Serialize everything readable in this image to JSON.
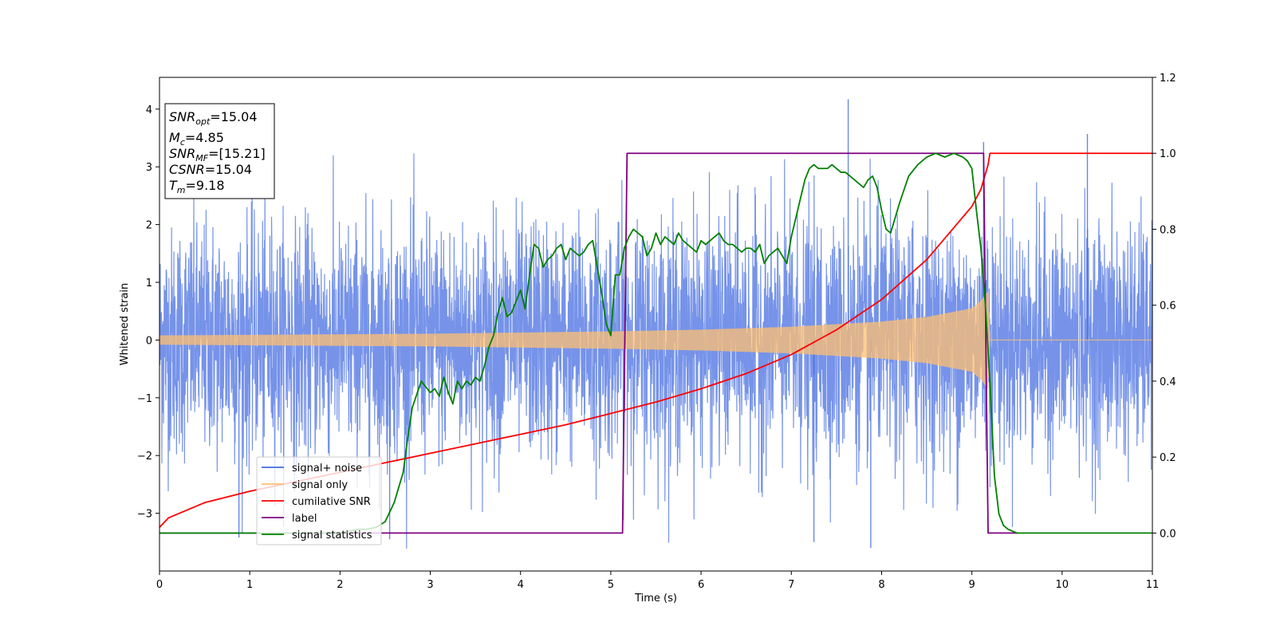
{
  "chart_data": {
    "type": "line",
    "xlabel": "Time (s)",
    "ylabel": "Whitened strain",
    "xlim": [
      0,
      11
    ],
    "ylim_left": [
      -4.0,
      4.55
    ],
    "ylim_right": [
      -0.1,
      1.2
    ],
    "x_ticks": [
      "0",
      "1",
      "2",
      "3",
      "4",
      "5",
      "6",
      "7",
      "8",
      "9",
      "10",
      "11"
    ],
    "y_ticks_left": [
      "−3",
      "−2",
      "−1",
      "0",
      "1",
      "2",
      "3",
      "4"
    ],
    "y_ticks_right": [
      "0.0",
      "0.2",
      "0.4",
      "0.6",
      "0.8",
      "1.0",
      "1.2"
    ],
    "grid": false,
    "legend_position": "lower-left",
    "annotation": {
      "lines": [
        {
          "base": "SNR",
          "sub": "opt",
          "value": "=15.04"
        },
        {
          "base": "M",
          "sub": "c",
          "value": "=4.85"
        },
        {
          "base": "SNR",
          "sub": "MF",
          "value": "=[15.21]"
        },
        {
          "base": "CSNR",
          "sub": "",
          "value": "=15.04"
        },
        {
          "base": "T",
          "sub": "m",
          "value": "=9.18"
        }
      ]
    },
    "series": [
      {
        "name": "signal+ noise",
        "axis": "left",
        "color": "#4169e1",
        "description_level": "noise amplitude ~1.5 with spikes up to 4.2",
        "noise_std": 1.0,
        "noise_peak_max": 4.17,
        "noise_peak_min": -3.6
      },
      {
        "name": "signal only",
        "axis": "left",
        "color": "#ffbf70",
        "envelope_x": [
          0,
          1,
          2,
          3,
          4,
          5,
          6,
          7,
          8,
          8.5,
          9,
          9.1,
          9.18,
          9.2,
          11
        ],
        "envelope_y": [
          0.08,
          0.09,
          0.1,
          0.11,
          0.13,
          0.15,
          0.18,
          0.23,
          0.32,
          0.4,
          0.55,
          0.68,
          0.85,
          0.0,
          0.0
        ]
      },
      {
        "name": "cumilative SNR",
        "axis": "right",
        "color": "#ff0000",
        "x": [
          0,
          0.1,
          0.5,
          1,
          1.5,
          2,
          2.5,
          3,
          3.5,
          4,
          4.5,
          5,
          5.5,
          6,
          6.5,
          7,
          7.5,
          8,
          8.5,
          9,
          9.1,
          9.18,
          9.2,
          11
        ],
        "y": [
          0.015,
          0.04,
          0.08,
          0.11,
          0.135,
          0.16,
          0.185,
          0.21,
          0.235,
          0.26,
          0.285,
          0.315,
          0.345,
          0.38,
          0.42,
          0.47,
          0.535,
          0.615,
          0.72,
          0.86,
          0.905,
          0.97,
          1.0,
          1.0
        ]
      },
      {
        "name": "label",
        "axis": "right",
        "color": "#800080",
        "x": [
          0,
          5.13,
          5.18,
          9.13,
          9.18,
          9.5
        ],
        "y": [
          0.0,
          0.0,
          1.0,
          1.0,
          0.0,
          0.0
        ]
      },
      {
        "name": "signal statistics",
        "axis": "right",
        "color": "#008000",
        "x": [
          0,
          1.0,
          2.0,
          2.1,
          2.2,
          2.3,
          2.4,
          2.5,
          2.6,
          2.7,
          2.75,
          2.8,
          2.9,
          3.0,
          3.05,
          3.1,
          3.15,
          3.2,
          3.25,
          3.3,
          3.35,
          3.4,
          3.45,
          3.5,
          3.55,
          3.6,
          3.65,
          3.7,
          3.75,
          3.8,
          3.85,
          3.9,
          3.95,
          4.0,
          4.05,
          4.1,
          4.15,
          4.2,
          4.25,
          4.3,
          4.35,
          4.4,
          4.45,
          4.5,
          4.55,
          4.6,
          4.65,
          4.7,
          4.75,
          4.8,
          4.85,
          4.9,
          4.95,
          5.0,
          5.05,
          5.1,
          5.15,
          5.2,
          5.25,
          5.3,
          5.35,
          5.4,
          5.45,
          5.5,
          5.55,
          5.6,
          5.65,
          5.7,
          5.75,
          5.8,
          5.85,
          5.9,
          5.95,
          6.0,
          6.05,
          6.1,
          6.15,
          6.2,
          6.25,
          6.3,
          6.35,
          6.4,
          6.45,
          6.5,
          6.55,
          6.6,
          6.65,
          6.7,
          6.75,
          6.8,
          6.85,
          6.9,
          6.95,
          7.0,
          7.05,
          7.1,
          7.15,
          7.2,
          7.25,
          7.3,
          7.35,
          7.4,
          7.45,
          7.5,
          7.55,
          7.6,
          7.65,
          7.7,
          7.75,
          7.8,
          7.85,
          7.9,
          7.95,
          8.0,
          8.05,
          8.1,
          8.15,
          8.2,
          8.3,
          8.4,
          8.5,
          8.6,
          8.7,
          8.8,
          8.9,
          8.95,
          9.0,
          9.05,
          9.1,
          9.15,
          9.2,
          9.25,
          9.3,
          9.35,
          9.4,
          9.5,
          10,
          11
        ],
        "y": [
          0.0,
          0.0,
          0.0,
          0.005,
          0.01,
          0.01,
          0.015,
          0.03,
          0.08,
          0.16,
          0.25,
          0.33,
          0.4,
          0.37,
          0.38,
          0.36,
          0.41,
          0.37,
          0.34,
          0.4,
          0.38,
          0.4,
          0.39,
          0.41,
          0.4,
          0.44,
          0.49,
          0.52,
          0.58,
          0.62,
          0.57,
          0.58,
          0.61,
          0.64,
          0.59,
          0.68,
          0.76,
          0.75,
          0.7,
          0.72,
          0.73,
          0.75,
          0.76,
          0.72,
          0.75,
          0.74,
          0.73,
          0.74,
          0.76,
          0.77,
          0.7,
          0.63,
          0.55,
          0.52,
          0.68,
          0.68,
          0.75,
          0.78,
          0.8,
          0.79,
          0.78,
          0.73,
          0.75,
          0.79,
          0.76,
          0.78,
          0.77,
          0.76,
          0.79,
          0.77,
          0.76,
          0.75,
          0.74,
          0.77,
          0.76,
          0.77,
          0.78,
          0.79,
          0.77,
          0.76,
          0.76,
          0.75,
          0.74,
          0.75,
          0.75,
          0.74,
          0.76,
          0.71,
          0.73,
          0.74,
          0.75,
          0.73,
          0.71,
          0.78,
          0.83,
          0.88,
          0.93,
          0.96,
          0.97,
          0.96,
          0.96,
          0.96,
          0.97,
          0.96,
          0.95,
          0.95,
          0.94,
          0.93,
          0.92,
          0.91,
          0.93,
          0.94,
          0.91,
          0.85,
          0.8,
          0.79,
          0.83,
          0.87,
          0.94,
          0.97,
          0.99,
          1.0,
          0.99,
          1.0,
          0.99,
          0.98,
          0.96,
          0.85,
          0.75,
          0.6,
          0.4,
          0.15,
          0.05,
          0.02,
          0.01,
          0.0,
          0.0,
          0.0
        ]
      }
    ]
  }
}
